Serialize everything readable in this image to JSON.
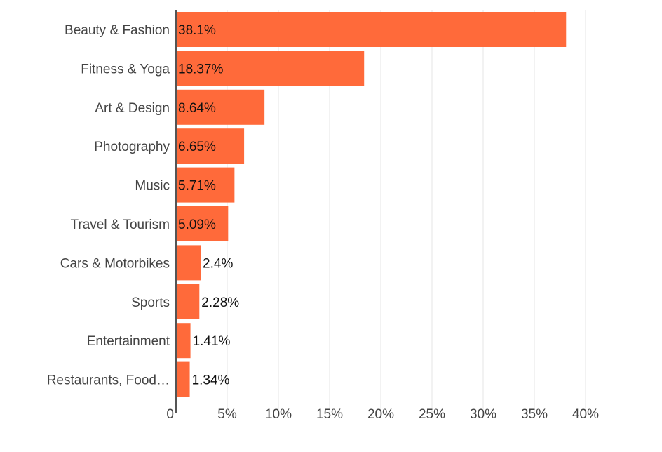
{
  "chart_data": {
    "type": "bar",
    "orientation": "horizontal",
    "categories": [
      "Beauty & Fashion",
      "Fitness & Yoga",
      "Art & Design",
      "Photography",
      "Music",
      "Travel & Tourism",
      "Cars & Motorbikes",
      "Sports",
      "Entertainment",
      "Restaurants, Food…"
    ],
    "values": [
      38.1,
      18.37,
      8.64,
      6.65,
      5.71,
      5.09,
      2.4,
      2.28,
      1.41,
      1.34
    ],
    "data_labels": [
      "38.1%",
      "18.37%",
      "8.64%",
      "6.65%",
      "5.71%",
      "5.09%",
      "2.4%",
      "2.28%",
      "1.41%",
      "1.34%"
    ],
    "xticks": [
      0,
      5,
      10,
      15,
      20,
      25,
      30,
      35,
      40
    ],
    "xtick_labels": [
      "0",
      "5%",
      "10%",
      "15%",
      "20%",
      "25%",
      "30%",
      "35%",
      "40%"
    ],
    "xlim": [
      0,
      40
    ],
    "grid": true,
    "bar_color": "#ff6a3a",
    "title": "",
    "xlabel": "",
    "ylabel": ""
  }
}
